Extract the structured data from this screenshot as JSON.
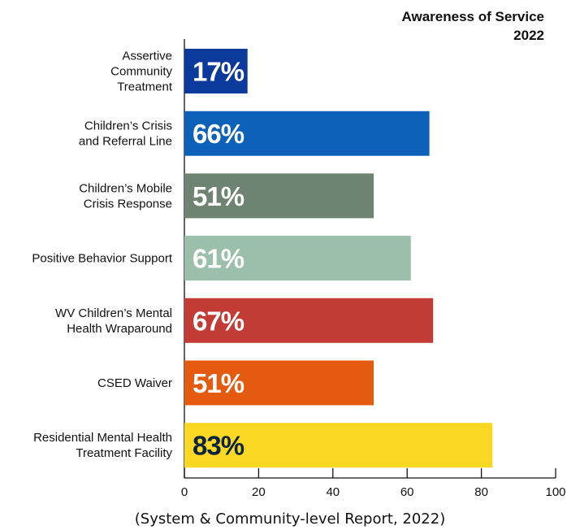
{
  "chart_data": {
    "type": "bar",
    "orientation": "horizontal",
    "title": [
      "Awareness of Service",
      "2022"
    ],
    "categories": [
      [
        "Assertive",
        "Community",
        "Treatment"
      ],
      [
        "Children’s Crisis",
        "and Referral Line"
      ],
      [
        "Children’s Mobile",
        "Crisis Response"
      ],
      [
        "Positive Behavior Support"
      ],
      [
        "WV Children’s Mental",
        "Health Wraparound"
      ],
      [
        "CSED Waiver"
      ],
      [
        "Residential Mental Health",
        "Treatment Facility"
      ]
    ],
    "values": [
      17,
      66,
      51,
      61,
      67,
      51,
      83
    ],
    "data_labels": [
      "17%",
      "66%",
      "51%",
      "61%",
      "67%",
      "51%",
      "83%"
    ],
    "bar_colors": [
      "#0b3a9c",
      "#0e61b8",
      "#6e8371",
      "#9bbfab",
      "#c23b35",
      "#e45a0f",
      "#f8d822"
    ],
    "label_colors": [
      "#ffffff",
      "#ffffff",
      "#ffffff",
      "#ffffff",
      "#ffffff",
      "#ffffff",
      "#0c2340"
    ],
    "xlim": [
      0,
      100
    ],
    "xticks": [
      0,
      20,
      40,
      60,
      80,
      100
    ],
    "grid": false,
    "legend": "none",
    "caption": "(System & Community-level Report, 2022)"
  }
}
